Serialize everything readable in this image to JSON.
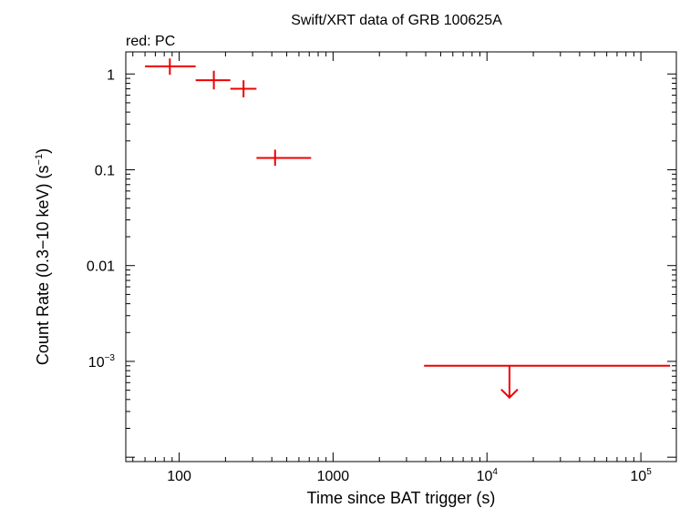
{
  "chart_data": {
    "type": "scatter",
    "title": "Swift/XRT data of GRB 100625A",
    "subtitle": "red: PC",
    "xlabel": "Time since BAT trigger (s)",
    "ylabel_main": "Count Rate (0.3−10 keV) (s",
    "ylabel_sup": "−1",
    "ylabel_close": ")",
    "x_scale": "log",
    "y_scale": "log",
    "xlim": [
      45,
      170000
    ],
    "ylim": [
      9e-05,
      1.7
    ],
    "grid": false,
    "x_ticks": [
      {
        "value": 100,
        "base": "100",
        "exp": ""
      },
      {
        "value": 1000,
        "base": "1000",
        "exp": ""
      },
      {
        "value": 10000,
        "base": "10",
        "exp": "4"
      },
      {
        "value": 100000,
        "base": "10",
        "exp": "5"
      }
    ],
    "y_ticks": [
      {
        "value": 1,
        "base": "1",
        "exp": ""
      },
      {
        "value": 0.1,
        "base": "0.1",
        "exp": ""
      },
      {
        "value": 0.01,
        "base": "0.01",
        "exp": ""
      },
      {
        "value": 0.001,
        "base": "10",
        "exp": "−3"
      }
    ],
    "series": [
      {
        "color": "#ee0000",
        "points": [
          {
            "x": 87,
            "xlo": 60,
            "xhi": 128,
            "y": 1.2,
            "ylo": 0.98,
            "yhi": 1.45
          },
          {
            "x": 168,
            "xlo": 128,
            "xhi": 215,
            "y": 0.86,
            "ylo": 0.69,
            "yhi": 1.08
          },
          {
            "x": 262,
            "xlo": 215,
            "xhi": 318,
            "y": 0.7,
            "ylo": 0.57,
            "yhi": 0.86
          },
          {
            "x": 420,
            "xlo": 318,
            "xhi": 720,
            "y": 0.133,
            "ylo": 0.11,
            "yhi": 0.162
          }
        ],
        "upper_limits": [
          {
            "x": 14000,
            "xlo": 3900,
            "xhi": 155000,
            "y": 0.0009
          }
        ]
      }
    ]
  }
}
